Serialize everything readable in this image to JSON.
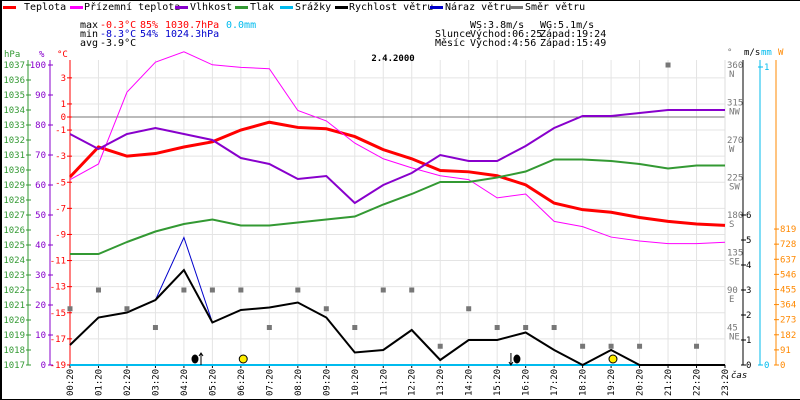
{
  "legend": [
    {
      "label": "Teplota",
      "color": "#ff0000"
    },
    {
      "label": "Přízemní teplota",
      "color": "#ff00ff"
    },
    {
      "label": "Vlhkost",
      "color": "#8800cc"
    },
    {
      "label": "Tlak",
      "color": "#339933"
    },
    {
      "label": "Srážky",
      "color": "#00bbee"
    },
    {
      "label": "Rychlost větru",
      "color": "#000000"
    },
    {
      "label": "Náraz větru",
      "color": "#0000cc"
    },
    {
      "label": "Směr větru",
      "color": "#777777"
    }
  ],
  "stats": {
    "max_label": "max",
    "max_temp": "-0.3°C",
    "max_hum": "85%",
    "max_press": "1030.7hPa",
    "rain": "0.0mm",
    "min_label": "min",
    "min_temp": "-8.3°C",
    "min_hum": "54%",
    "min_press": "1024.3hPa",
    "avg_label": "avg",
    "avg_temp": "-3.9°C",
    "ws": "WS:3.8m/s",
    "wg": "WG:5.1m/s",
    "sun_label": "Slunce",
    "sun_rise": "Východ:06:25",
    "sun_set": "Západ:19:24",
    "moon_label": "Měsíc",
    "moon_rise": "Východ:4:56",
    "moon_set": "Západ:15:49"
  },
  "chart_data": {
    "type": "line",
    "title": "2.4.2000",
    "xlabel": "čas",
    "x": [
      "00:20",
      "01:20",
      "02:20",
      "03:20",
      "04:20",
      "05:20",
      "06:20",
      "07:20",
      "08:20",
      "09:20",
      "10:20",
      "11:20",
      "12:20",
      "13:20",
      "14:20",
      "15:20",
      "16:20",
      "17:20",
      "18:20",
      "19:20",
      "20:20",
      "21:20",
      "22:20",
      "23:20"
    ],
    "axes": {
      "hPa": {
        "unit": "hPa",
        "range": [
          1017,
          1037
        ],
        "ticks": [
          1017,
          1018,
          1019,
          1020,
          1021,
          1022,
          1023,
          1024,
          1025,
          1026,
          1027,
          1028,
          1029,
          1030,
          1031,
          1032,
          1033,
          1034,
          1035,
          1036,
          1037
        ]
      },
      "pct": {
        "unit": "%",
        "range": [
          0,
          100
        ],
        "ticks": [
          0,
          10,
          20,
          30,
          40,
          50,
          60,
          70,
          80,
          90,
          100
        ]
      },
      "temp": {
        "unit": "°C",
        "range": [
          -19,
          3.8
        ],
        "ticks": [
          3,
          1,
          0,
          -1,
          -3,
          -5,
          -7,
          -9,
          -11,
          -13,
          -15,
          -17,
          -19
        ]
      },
      "dir": {
        "unit": "°",
        "range": [
          0,
          360
        ],
        "ticks": [
          {
            "v": 360,
            "l": "N"
          },
          {
            "v": 315,
            "l": "NW"
          },
          {
            "v": 270,
            "l": "W"
          },
          {
            "v": 225,
            "l": "SW"
          },
          {
            "v": 180,
            "l": "S"
          },
          {
            "v": 135,
            "l": "SE"
          },
          {
            "v": 90,
            "l": "E"
          },
          {
            "v": 45,
            "l": "NE"
          }
        ]
      },
      "ms": {
        "unit": "m/s",
        "range": [
          0,
          12
        ],
        "ticks": [
          0,
          1,
          2,
          3,
          4,
          5,
          6
        ]
      },
      "mm": {
        "unit": "mm",
        "range": [
          0,
          1
        ],
        "ticks": [
          0,
          1
        ]
      },
      "W": {
        "unit": "W",
        "range": [
          0,
          819
        ],
        "ticks": [
          0,
          91,
          182,
          273,
          364,
          455,
          546,
          637,
          728,
          819
        ]
      }
    },
    "series": [
      {
        "name": "Teplota",
        "axis": "temp",
        "color": "#ff0000",
        "width": 3,
        "values": [
          -4.6,
          -2.3,
          -3.0,
          -2.8,
          -2.3,
          -1.9,
          -1.0,
          -0.4,
          -0.8,
          -0.9,
          -1.5,
          -2.5,
          -3.2,
          -4.1,
          -4.2,
          -4.5,
          -5.2,
          -6.6,
          -7.1,
          -7.3,
          -7.7,
          -8.0,
          -8.2,
          -8.3
        ]
      },
      {
        "name": "Přízemní teplota",
        "axis": "temp",
        "color": "#ff00ff",
        "width": 1,
        "values": [
          -4.8,
          -3.6,
          1.9,
          4.2,
          5.0,
          4.0,
          3.8,
          3.7,
          0.5,
          -0.3,
          -2.0,
          -3.2,
          -3.9,
          -4.5,
          -4.8,
          -6.2,
          -5.9,
          -8.0,
          -8.4,
          -9.2,
          -9.5,
          -9.7,
          -9.7,
          -9.6
        ]
      },
      {
        "name": "Vlhkost",
        "axis": "pct",
        "color": "#8800cc",
        "width": 2,
        "values": [
          77,
          72,
          77,
          79,
          77,
          75,
          69,
          67,
          62,
          63,
          54,
          60,
          64,
          70,
          68,
          68,
          73,
          79,
          83,
          83,
          84,
          85,
          85,
          85
        ]
      },
      {
        "name": "Tlak",
        "axis": "hPa",
        "color": "#339933",
        "width": 2,
        "values": [
          1024.4,
          1024.4,
          1025.2,
          1025.9,
          1026.4,
          1026.7,
          1026.3,
          1026.3,
          1026.5,
          1026.7,
          1026.9,
          1027.7,
          1028.4,
          1029.2,
          1029.2,
          1029.5,
          1029.9,
          1030.7,
          1030.7,
          1030.6,
          1030.4,
          1030.1,
          1030.3,
          1030.3
        ]
      },
      {
        "name": "Srážky",
        "axis": "mm",
        "color": "#00bbee",
        "width": 2,
        "values": [
          0,
          0,
          0,
          0,
          0,
          0,
          0,
          0,
          0,
          0,
          0,
          0,
          0,
          0,
          0,
          0,
          0,
          0,
          0,
          0,
          0,
          0,
          0,
          0
        ]
      },
      {
        "name": "Náraz větru",
        "axis": "ms",
        "color": "#0000cc",
        "width": 1,
        "values": [
          0.8,
          1.9,
          2.1,
          2.6,
          5.1,
          1.7,
          2.2,
          2.3,
          2.5,
          1.9,
          0.5,
          0.6,
          1.4,
          0.2,
          1.0,
          1.0,
          1.3,
          0.6,
          0,
          0.6,
          0,
          0,
          0,
          0
        ]
      },
      {
        "name": "Rychlost větru",
        "axis": "ms",
        "color": "#000000",
        "width": 2,
        "values": [
          0.8,
          1.9,
          2.1,
          2.6,
          3.8,
          1.7,
          2.2,
          2.3,
          2.5,
          1.9,
          0.5,
          0.6,
          1.4,
          0.2,
          1.0,
          1.0,
          1.3,
          0.6,
          0,
          0.6,
          0,
          0,
          0,
          0
        ]
      },
      {
        "name": "Směr větru",
        "axis": "dir",
        "color": "#777777",
        "marker": "square",
        "values": [
          67.5,
          90,
          67.5,
          45,
          90,
          90,
          90,
          45,
          90,
          67.5,
          45,
          90,
          90,
          22.5,
          67.5,
          45,
          45,
          45,
          22.5,
          22.5,
          22.5,
          360,
          22.5,
          null
        ]
      }
    ],
    "events": [
      {
        "type": "moonrise",
        "time": "4:56"
      },
      {
        "type": "sunrise",
        "time": "06:25"
      },
      {
        "type": "moonset",
        "time": "15:49"
      },
      {
        "type": "sunset",
        "time": "19:24"
      }
    ]
  }
}
